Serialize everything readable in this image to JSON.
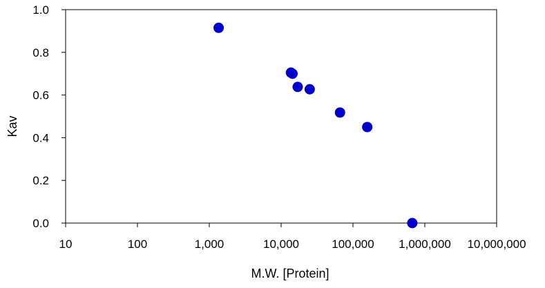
{
  "chart_data": {
    "type": "scatter",
    "title": "",
    "xlabel": "M.W. [Protein]",
    "ylabel": "Kav",
    "x_scale": "log",
    "xlim": [
      10,
      10000000
    ],
    "ylim": [
      0.0,
      1.0
    ],
    "x_ticks": [
      10,
      100,
      1000,
      10000,
      100000,
      1000000,
      10000000
    ],
    "x_tick_labels": [
      "10",
      "100",
      "1,000",
      "10,000",
      "100,000",
      "1,000,000",
      "10,000,000"
    ],
    "y_ticks": [
      0.0,
      0.2,
      0.4,
      0.6,
      0.8,
      1.0
    ],
    "y_tick_labels": [
      "0.0",
      "0.2",
      "0.4",
      "0.6",
      "0.8",
      "1.0"
    ],
    "grid": false,
    "legend": "none",
    "marker_color": "#0000cc",
    "series": [
      {
        "points": [
          {
            "x": 1350,
            "y": 0.915
          },
          {
            "x": 13700,
            "y": 0.705
          },
          {
            "x": 14400,
            "y": 0.7
          },
          {
            "x": 17000,
            "y": 0.638
          },
          {
            "x": 25000,
            "y": 0.627
          },
          {
            "x": 66000,
            "y": 0.518
          },
          {
            "x": 158000,
            "y": 0.45
          },
          {
            "x": 669000,
            "y": 0.0
          }
        ]
      }
    ]
  }
}
